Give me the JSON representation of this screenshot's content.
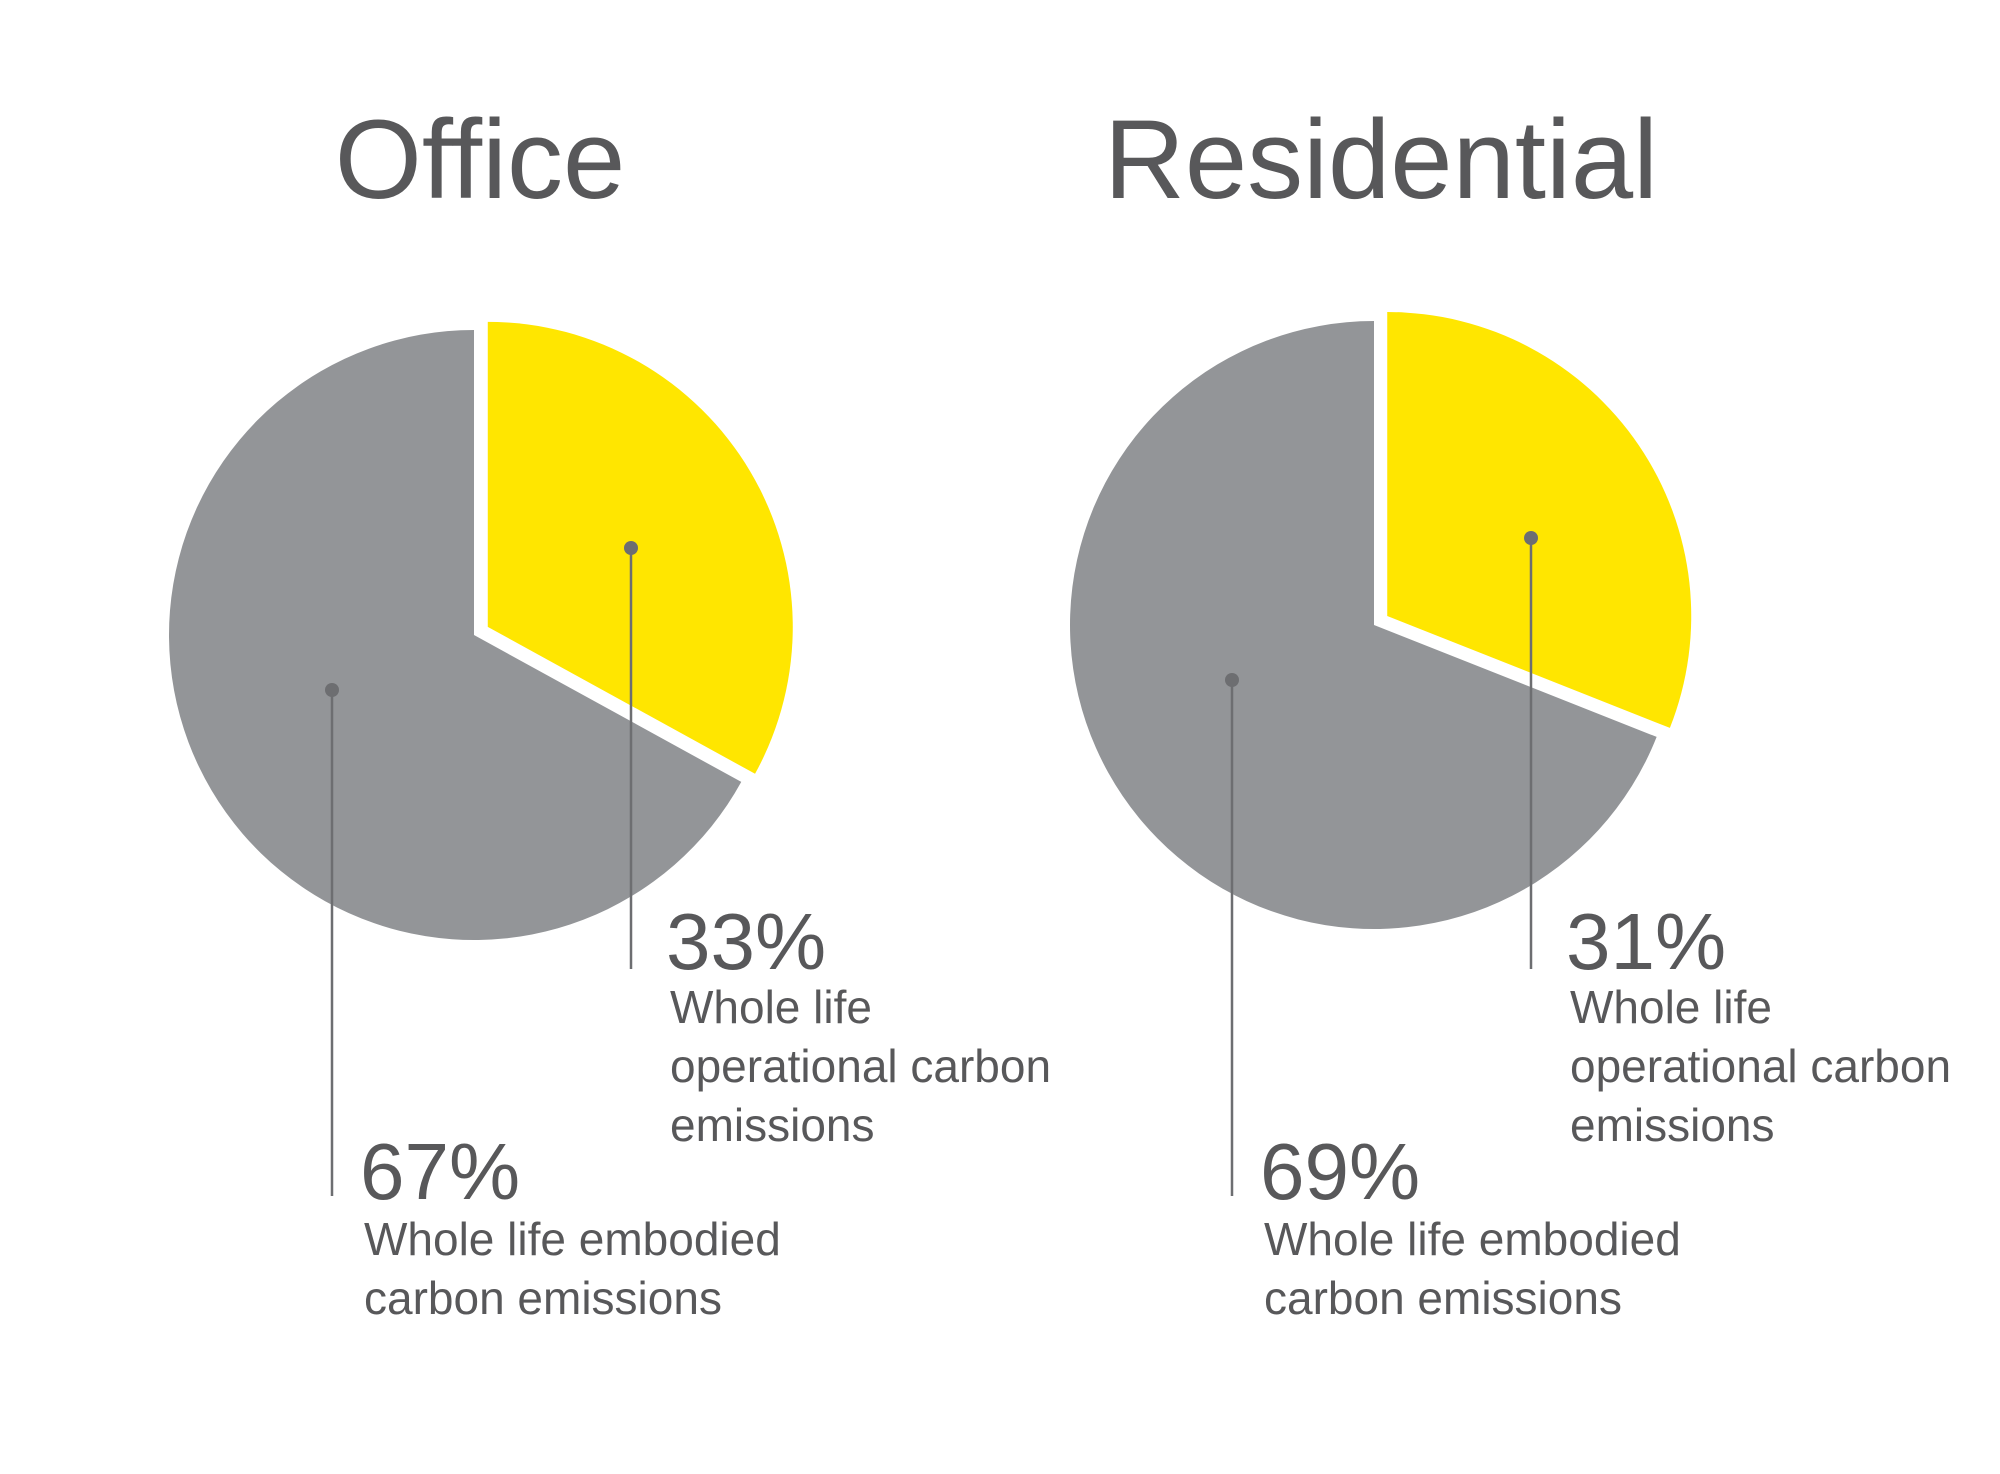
{
  "chart_data": [
    {
      "type": "pie",
      "title": "Office",
      "categories": [
        "Whole life operational carbon emissions",
        "Whole life embodied carbon emissions"
      ],
      "values": [
        33,
        67
      ],
      "value_labels": [
        "33%",
        "67%"
      ],
      "colors": [
        "#ffe600",
        "#939598"
      ]
    },
    {
      "type": "pie",
      "title": "Residential",
      "categories": [
        "Whole life operational carbon emissions",
        "Whole life embodied carbon emissions"
      ],
      "values": [
        31,
        69
      ],
      "value_labels": [
        "31%",
        "69%"
      ],
      "colors": [
        "#ffe600",
        "#939598"
      ]
    }
  ]
}
